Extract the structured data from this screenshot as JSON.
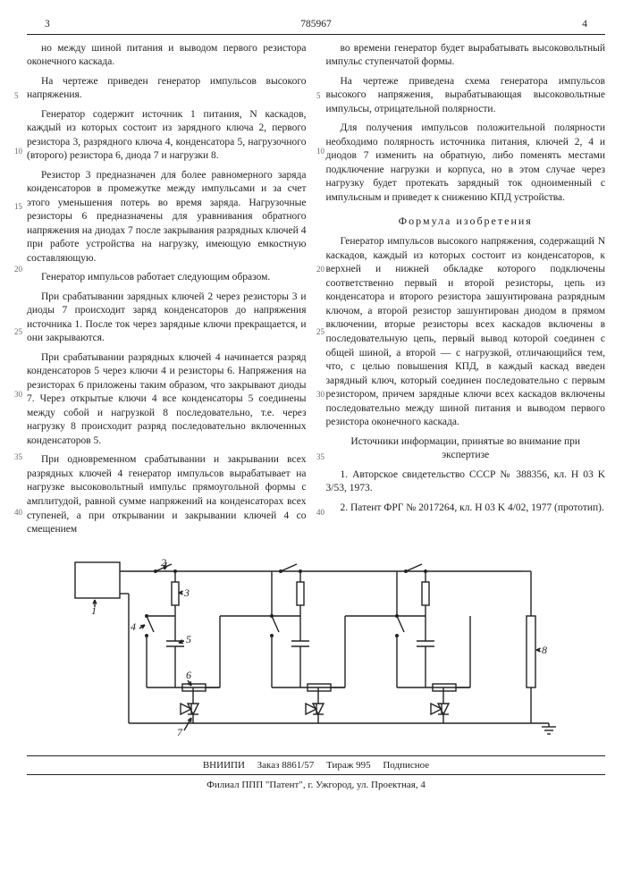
{
  "header": {
    "col_left_no": "3",
    "patent_no": "785967",
    "col_right_no": "4"
  },
  "left_col": {
    "p1": "но между шиной питания и выводом первого резистора оконечного каскада.",
    "p2": "На чертеже приведен генератор импульсов высокого напряжения.",
    "p3": "Генератор содержит источник 1 питания, N каскадов, каждый из которых состоит из зарядного ключа 2, первого резистора 3, разрядного ключа 4, конденсатора 5, нагрузочного (второго) резистора 6, диода 7 и нагрузки 8.",
    "p4": "Резистор 3 предназначен для более равномерного заряда конденсаторов в промежутке между импульсами и за счет этого уменьшения потерь во время заряда. Нагрузочные резисторы 6 предназначены для уравнивания обратного напряжения на диодах 7 после закрывания разрядных ключей 4 при работе устройства на нагрузку, имеющую емкостную составляющую.",
    "p5": "Генератор импульсов работает следующим образом.",
    "p6": "При срабатывании зарядных ключей 2 через резисторы 3 и диоды 7 происходит заряд конденсаторов до напряжения источника 1. После ток через зарядные ключи прекращается, и они закрываются.",
    "p7": "При срабатывании разрядных ключей 4 начинается разряд конденсаторов 5 через ключи 4 и резисторы 6. Напряжения на резисторах 6 приложены таким образом, что закрывают диоды 7. Через открытые ключи 4 все конденсаторы 5 соединены между собой и нагрузкой 8 последовательно, т.е. через нагрузку 8 происходит разряд последовательно включенных конденсаторов 5.",
    "p8": "При одновременном срабатывании и закрывании всех разрядных ключей 4 генератор импульсов вырабатывает на нагрузке высоковольтный импульс прямоугольной формы с амплитудой, равной сумме напряжений на конденсаторах всех ступеней, а при открывании и закрывании ключей 4 со смещением"
  },
  "right_col": {
    "p1": "во времени генератор будет вырабатывать высоковольтный импульс ступенчатой формы.",
    "p2": "На чертеже приведена схема генератора импульсов высокого напряжения, вырабатывающая высоковольтные импульсы, отрицательной полярности.",
    "p3": "Для получения импульсов положительной полярности необходимо полярность источника питания, ключей 2, 4 и диодов 7 изменить на обратную, либо поменять местами подключение нагрузки и корпуса, но в этом случае через нагрузку будет протекать зарядный ток одноименный с импульсным и приведет к снижению КПД устройства.",
    "formula_title": "Формула изобретения",
    "p4": "Генератор импульсов высокого напряжения, содержащий N каскадов, каждый из которых состоит из конденсаторов, к верхней и нижней обкладке которого подключены соответственно первый и второй резисторы, цепь из конденсатора и второго резистора зашунтирована разрядным ключом, а второй резистор зашунтирован диодом в прямом включении, вторые резисторы всех каскадов включены в последовательную цепь, первый вывод которой соединен с общей шиной, а второй — с нагрузкой, отличающийся тем, что, с целью повышения КПД, в каждый каскад введен зарядный ключ, который соединен последовательно с первым резистором, причем зарядные ключи всех каскадов включены последовательно между шиной питания и выводом первого резистора оконечного каскада.",
    "sources_title": "Источники информации, принятые во внимание при экспертизе",
    "s1": "1. Авторское свидетельство СССР № 388356, кл. H 03 K 3/53, 1973.",
    "s2": "2. Патент ФРГ № 2017264, кл. H 03 K 4/02, 1977 (прототип)."
  },
  "line_numbers": [
    "5",
    "10",
    "15",
    "20",
    "25",
    "30",
    "35",
    "40"
  ],
  "diagram": {
    "labels": {
      "src": "1",
      "sw_charge": "2",
      "r1": "3",
      "sw_dis": "4",
      "cap": "5",
      "r2": "6",
      "diode": "7",
      "load": "8"
    },
    "stroke": "#222222",
    "stroke_width": 1.4
  },
  "footer": {
    "line1_a": "ВНИИПИ",
    "line1_b": "Заказ 8861/57",
    "line1_c": "Тираж 995",
    "line1_d": "Подписное",
    "line2": "Филиал ППП \"Патент\", г. Ужгород, ул. Проектная, 4"
  }
}
